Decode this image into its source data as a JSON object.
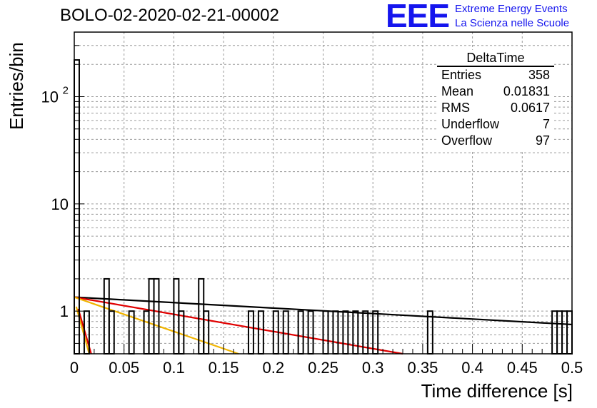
{
  "chart_data": {
    "type": "histogram",
    "title": "BOLO-02-2020-02-21-00002",
    "xlabel": "Time difference [s]",
    "ylabel": "Entries/bin",
    "xlim": [
      0,
      0.5
    ],
    "ylim": [
      0.4,
      400
    ],
    "y_scale": "log",
    "grid": true,
    "x_ticks": [
      "0",
      "0.05",
      "0.1",
      "0.15",
      "0.2",
      "0.25",
      "0.3",
      "0.35",
      "0.4",
      "0.45",
      "0.5"
    ],
    "y_ticks": [
      {
        "value": 1,
        "label": "1"
      },
      {
        "value": 10,
        "label": "10"
      },
      {
        "value": 100,
        "label": "10",
        "exp": "2"
      }
    ],
    "bin_width": 0.005,
    "bins": [
      {
        "x": 0.0,
        "y": 220
      },
      {
        "x": 0.01,
        "y": 1
      },
      {
        "x": 0.03,
        "y": 2
      },
      {
        "x": 0.035,
        "y": 1
      },
      {
        "x": 0.055,
        "y": 1
      },
      {
        "x": 0.07,
        "y": 1
      },
      {
        "x": 0.075,
        "y": 2
      },
      {
        "x": 0.08,
        "y": 2
      },
      {
        "x": 0.1,
        "y": 2
      },
      {
        "x": 0.105,
        "y": 1
      },
      {
        "x": 0.125,
        "y": 2
      },
      {
        "x": 0.13,
        "y": 1
      },
      {
        "x": 0.175,
        "y": 1
      },
      {
        "x": 0.185,
        "y": 1
      },
      {
        "x": 0.2,
        "y": 1
      },
      {
        "x": 0.21,
        "y": 1
      },
      {
        "x": 0.225,
        "y": 1
      },
      {
        "x": 0.235,
        "y": 1
      },
      {
        "x": 0.25,
        "y": 1
      },
      {
        "x": 0.26,
        "y": 1
      },
      {
        "x": 0.27,
        "y": 1
      },
      {
        "x": 0.28,
        "y": 1
      },
      {
        "x": 0.29,
        "y": 1
      },
      {
        "x": 0.3,
        "y": 1
      },
      {
        "x": 0.355,
        "y": 1
      },
      {
        "x": 0.48,
        "y": 1
      },
      {
        "x": 0.485,
        "y": 1
      },
      {
        "x": 0.49,
        "y": 1
      },
      {
        "x": 0.495,
        "y": 1
      }
    ],
    "fit_lines": [
      {
        "color": "#000000",
        "x1": 0.0,
        "y1": 1.35,
        "x2": 0.5,
        "y2": 0.75
      },
      {
        "color": "#e00000",
        "x1": 0.0,
        "y1": 1.35,
        "x2": 0.33,
        "y2": 0.4
      },
      {
        "color": "#f0b400",
        "x1": 0.0,
        "y1": 1.35,
        "x2": 0.165,
        "y2": 0.4
      },
      {
        "color": "#f0b400",
        "x1": 0.002,
        "y1": 1.1,
        "x2": 0.015,
        "y2": 0.4
      },
      {
        "color": "#e00000",
        "x1": 0.004,
        "y1": 1.05,
        "x2": 0.017,
        "y2": 0.4
      }
    ]
  },
  "stats_box": {
    "title": "DeltaTime",
    "rows": [
      {
        "label": "Entries",
        "value": "358"
      },
      {
        "label": "Mean",
        "value": "0.01831"
      },
      {
        "label": "RMS",
        "value": "0.0617"
      },
      {
        "label": "Underflow",
        "value": "7"
      },
      {
        "label": "Overflow",
        "value": "97"
      }
    ]
  },
  "logo": {
    "mark": "EEE",
    "line1": "Extreme Energy Events",
    "line2": "La Scienza nelle Scuole",
    "color": "#1515ee"
  }
}
